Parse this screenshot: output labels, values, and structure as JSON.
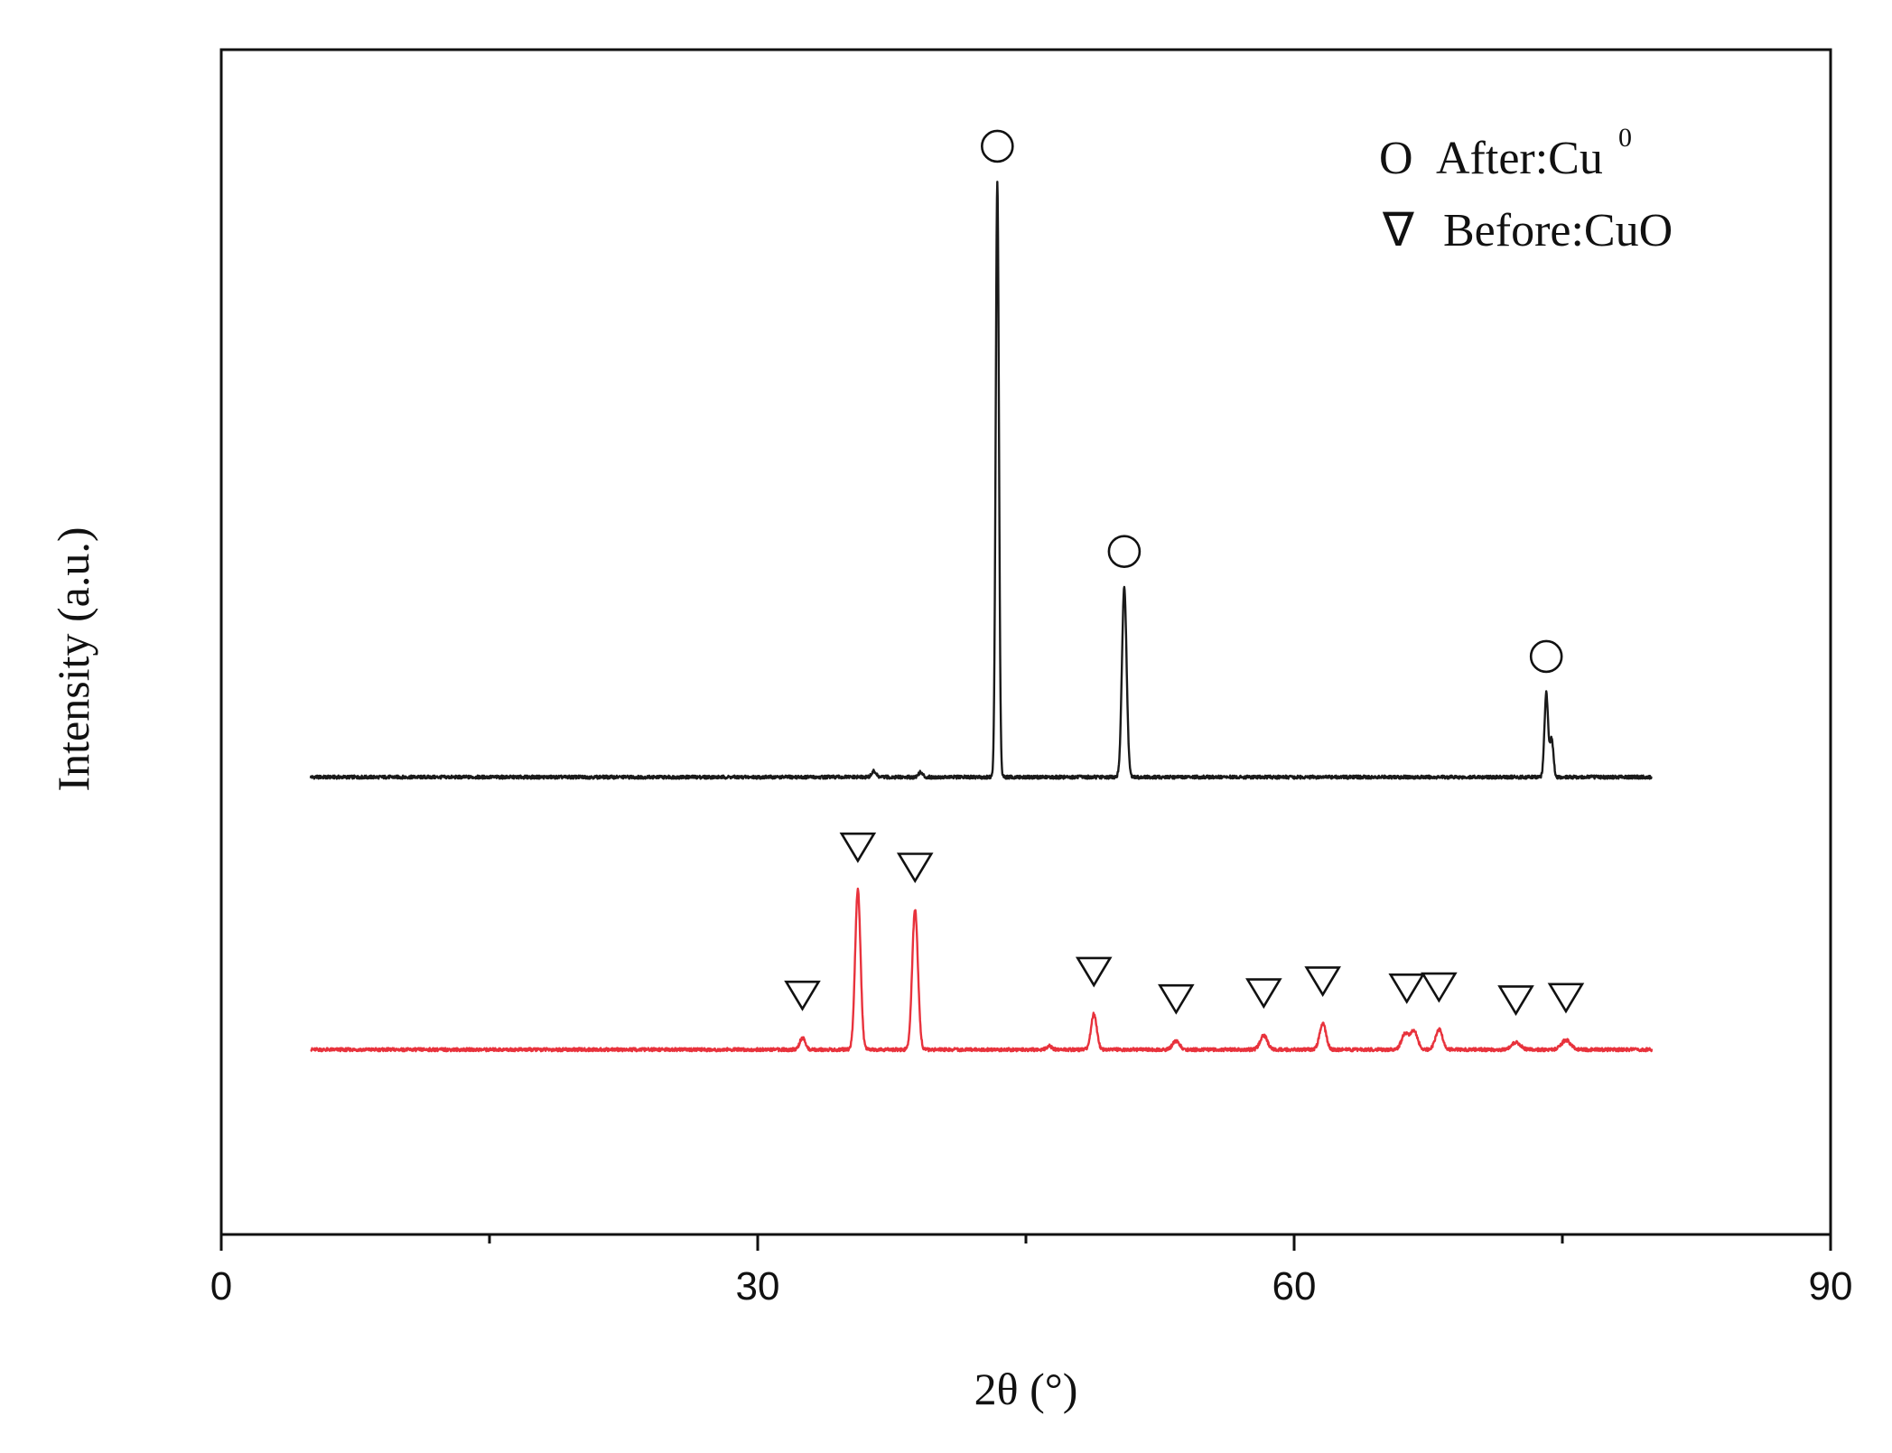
{
  "chart_data": {
    "type": "line",
    "title": "",
    "xlabel": "2θ (°)",
    "ylabel": "Intensity (a.u.)",
    "xlim": [
      0,
      90
    ],
    "ylim": [
      0,
      100
    ],
    "x_ticks": [
      {
        "value": 0,
        "label": "0"
      },
      {
        "value": 30,
        "label": "30"
      },
      {
        "value": 60,
        "label": "60"
      },
      {
        "value": 90,
        "label": "90"
      }
    ],
    "x_minor_ticks": [
      15,
      45,
      75
    ],
    "y_ticks_shown": false,
    "grid": false,
    "legend": {
      "placement": "top-right",
      "entries": [
        {
          "symbol": "O",
          "text": "After:Cu",
          "sup": "0",
          "series": "after"
        },
        {
          "symbol": "∇",
          "text": "Before:CuO",
          "series": "before"
        }
      ]
    },
    "series": [
      {
        "key": "after",
        "color": "#1a1a1a",
        "x_range": [
          5,
          80
        ],
        "baseline": 38.6,
        "peaks": [
          {
            "x": 36.5,
            "h": 0.5,
            "w": 0.12
          },
          {
            "x": 39.1,
            "h": 0.4,
            "w": 0.12
          },
          {
            "x": 43.4,
            "h": 50.2,
            "w": 0.09
          },
          {
            "x": 50.5,
            "h": 16.0,
            "w": 0.13
          },
          {
            "x": 74.1,
            "h": 7.1,
            "w": 0.1
          },
          {
            "x": 74.4,
            "h": 3.2,
            "w": 0.1
          }
        ],
        "markers": [
          43.4,
          50.5,
          74.1
        ]
      },
      {
        "key": "before",
        "color": "#e8323c",
        "x_range": [
          5,
          80
        ],
        "baseline": 15.6,
        "peaks": [
          {
            "x": 32.5,
            "h": 1.0,
            "w": 0.15
          },
          {
            "x": 35.6,
            "h": 13.5,
            "w": 0.15
          },
          {
            "x": 38.8,
            "h": 11.8,
            "w": 0.16
          },
          {
            "x": 46.3,
            "h": 0.3,
            "w": 0.15
          },
          {
            "x": 48.8,
            "h": 3.0,
            "w": 0.16
          },
          {
            "x": 53.4,
            "h": 0.7,
            "w": 0.2
          },
          {
            "x": 58.3,
            "h": 1.2,
            "w": 0.2
          },
          {
            "x": 61.6,
            "h": 2.2,
            "w": 0.18
          },
          {
            "x": 66.2,
            "h": 1.3,
            "w": 0.2
          },
          {
            "x": 66.7,
            "h": 1.6,
            "w": 0.2
          },
          {
            "x": 68.1,
            "h": 1.7,
            "w": 0.2
          },
          {
            "x": 72.4,
            "h": 0.6,
            "w": 0.25
          },
          {
            "x": 75.2,
            "h": 0.8,
            "w": 0.25
          }
        ],
        "markers": [
          32.5,
          35.6,
          38.8,
          48.8,
          53.4,
          58.3,
          61.6,
          66.3,
          68.1,
          72.4,
          75.2
        ]
      }
    ]
  }
}
